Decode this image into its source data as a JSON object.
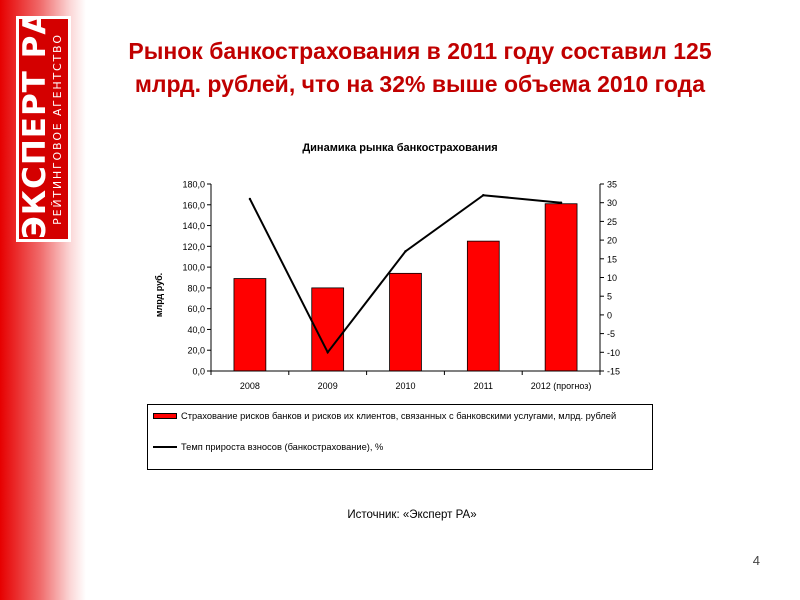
{
  "logo": {
    "main": "ЭКСПЕРТ РА",
    "sub": "РЕЙТИНГОВОЕ АГЕНТСТВО"
  },
  "title": "Рынок банкострахования в 2011 году составил 125 млрд. рублей, что на 32% выше объема 2010 года",
  "page_number": "4",
  "source": "Источник: «Эксперт РА»",
  "colors": {
    "title": "#c00000",
    "bar": "#ff0000",
    "line": "#000000",
    "sidebar": "#e60000"
  },
  "chart_data": {
    "type": "bar",
    "title": "Динамика рынка банкострахования",
    "categories": [
      "2008",
      "2009",
      "2010",
      "2011",
      "2012 (прогноз)"
    ],
    "ylabel": "млрд руб.",
    "ylim": [
      0,
      180
    ],
    "y_ticks": [
      "0,0",
      "20,0",
      "40,0",
      "60,0",
      "80,0",
      "100,0",
      "120,0",
      "140,0",
      "160,0",
      "180,0"
    ],
    "y2lim": [
      -15,
      35
    ],
    "y2_ticks": [
      "-15",
      "-10",
      "-5",
      "0",
      "5",
      "10",
      "15",
      "20",
      "25",
      "30",
      "35"
    ],
    "grid": false,
    "legend_placement": "bottom",
    "series": [
      {
        "name": "Страхование рисков банков и рисков их клиентов, связанных с банковскими услугами, млрд. рублей",
        "type": "bar",
        "axis": "left",
        "values": [
          89,
          80,
          94,
          125,
          161
        ]
      },
      {
        "name": "Темп прироста взносов (банкострахование), %",
        "type": "line",
        "axis": "right",
        "values": [
          31,
          -10,
          17,
          32,
          30
        ]
      }
    ]
  }
}
